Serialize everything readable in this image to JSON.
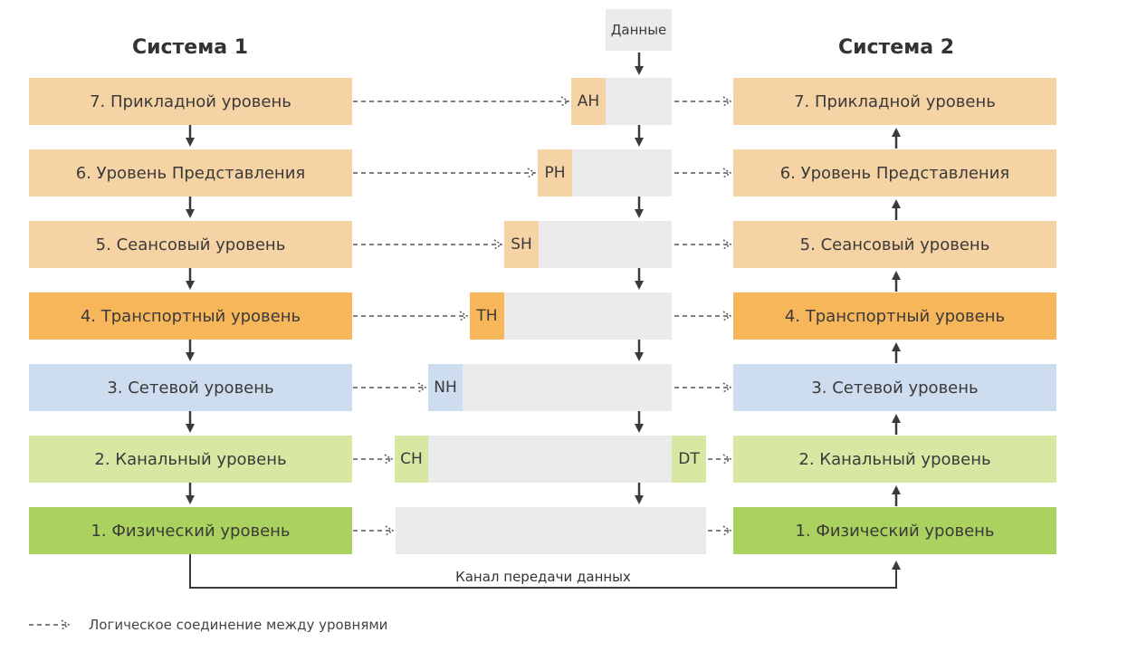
{
  "system1": {
    "title": "Система 1"
  },
  "system2": {
    "title": "Система 2"
  },
  "data_label": "Данные",
  "layers": [
    {
      "label": "7. Прикладной уровень",
      "color": "#f6d3a4",
      "header": "AH",
      "header_color": "#f6d3a4"
    },
    {
      "label": "6. Уровень Представления",
      "color": "#f6d3a4",
      "header": "PH",
      "header_color": "#f6d3a4"
    },
    {
      "label": "5. Сеансовый уровень",
      "color": "#f6d3a4",
      "header": "SH",
      "header_color": "#f6d3a4"
    },
    {
      "label": "4. Транспортный уровень",
      "color": "#f8b65a",
      "header": "TH",
      "header_color": "#f8b65a"
    },
    {
      "label": "3. Сетевой уровень",
      "color": "#cddcef",
      "header": "NH",
      "header_color": "#cddcef"
    },
    {
      "label": "2. Канальный уровень",
      "color": "#d7e8a2",
      "header": "CH",
      "header_color": "#d7e8a2",
      "trailer": "DT"
    },
    {
      "label": "1. Физический уровень",
      "color": "#abd25e"
    }
  ],
  "channel_label": "Канал передачи данных",
  "legend": {
    "label": "Логическое соединение между уровнями"
  }
}
